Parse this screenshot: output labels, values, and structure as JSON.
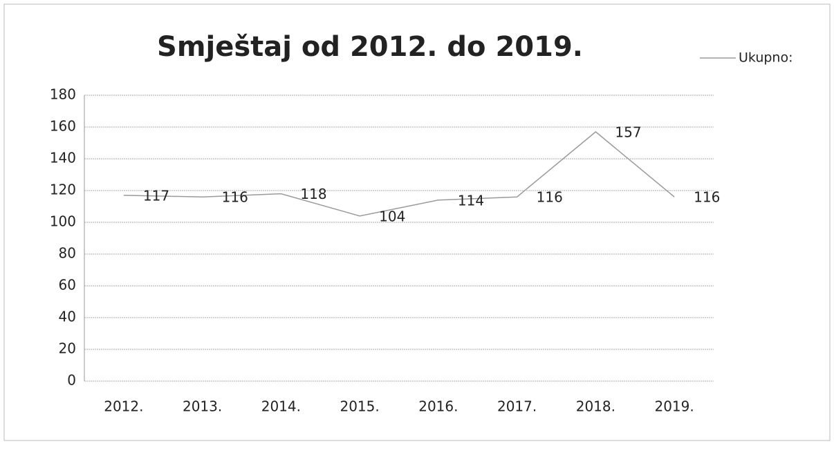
{
  "chart_data": {
    "type": "line",
    "title": "Smještaj od 2012. do 2019.",
    "categories": [
      "2012.",
      "2013.",
      "2014.",
      "2015.",
      "2016.",
      "2017.",
      "2018.",
      "2019."
    ],
    "series": [
      {
        "name": "Ukupno:",
        "color": "#9a9a9a",
        "values": [
          117,
          116,
          118,
          104,
          114,
          116,
          157,
          116
        ]
      }
    ],
    "ylim": [
      0,
      180
    ],
    "yticks": [
      0,
      20,
      40,
      60,
      80,
      100,
      120,
      140,
      160,
      180
    ],
    "grid": true,
    "legend": "top-right"
  }
}
